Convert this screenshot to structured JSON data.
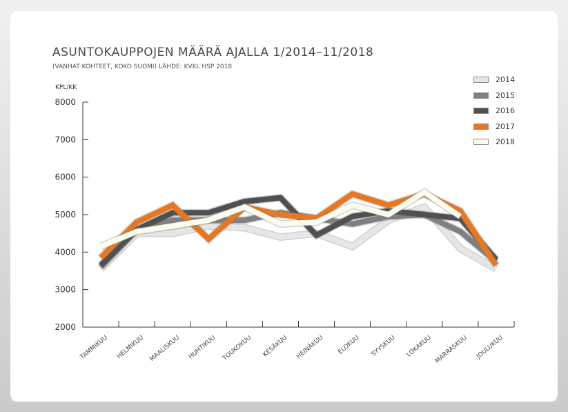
{
  "chart_data": {
    "type": "line",
    "title": "ASUNTOKAUPPOJEN MÄÄRÄ AJALLA 1/2014–11/2018",
    "subtitle": "(VANHAT KOHTEET, KOKO SUOMI) LÄHDE: KVKL HSP 2018",
    "ylabel": "KPL/KK",
    "ylim": [
      2000,
      8000
    ],
    "yticks": [
      "8000",
      "7000",
      "6000",
      "5000",
      "4000",
      "3000",
      "2000"
    ],
    "ytick_values": [
      8000,
      7000,
      6000,
      5000,
      4000,
      3000,
      2000
    ],
    "categories": [
      "TAMMIKUU",
      "HELMIKUU",
      "MAALISKUU",
      "HUHTIKUU",
      "TOUKOKUU",
      "KESÄKUU",
      "HEINÄKUU",
      "ELOKUU",
      "SYYSKUU",
      "LOKAKUU",
      "MARRASKUU",
      "JOULUKUU"
    ],
    "legend_position": "top-right",
    "grid": false,
    "series": [
      {
        "name": "2014",
        "color": "#e6e6e6",
        "values": [
          3550,
          4500,
          4500,
          4700,
          4650,
          4400,
          4500,
          4150,
          4850,
          5200,
          4100,
          3550
        ]
      },
      {
        "name": "2015",
        "color": "#808080",
        "values": [
          3600,
          4600,
          4850,
          4850,
          4850,
          5050,
          4900,
          4750,
          4950,
          5000,
          4550,
          3750
        ]
      },
      {
        "name": "2016",
        "color": "#505050",
        "values": [
          3650,
          4600,
          5050,
          5050,
          5350,
          5450,
          4450,
          4950,
          5100,
          5000,
          4900,
          3800
        ]
      },
      {
        "name": "2017",
        "color": "#e87722",
        "values": [
          3850,
          4800,
          5250,
          4350,
          5200,
          5000,
          4900,
          5550,
          5250,
          5550,
          5100,
          3650
        ]
      },
      {
        "name": "2018",
        "color": "#fbfbf0",
        "values": [
          4150,
          4550,
          4700,
          4850,
          5200,
          4750,
          4800,
          5250,
          5000,
          5600,
          4950,
          null
        ]
      }
    ]
  }
}
